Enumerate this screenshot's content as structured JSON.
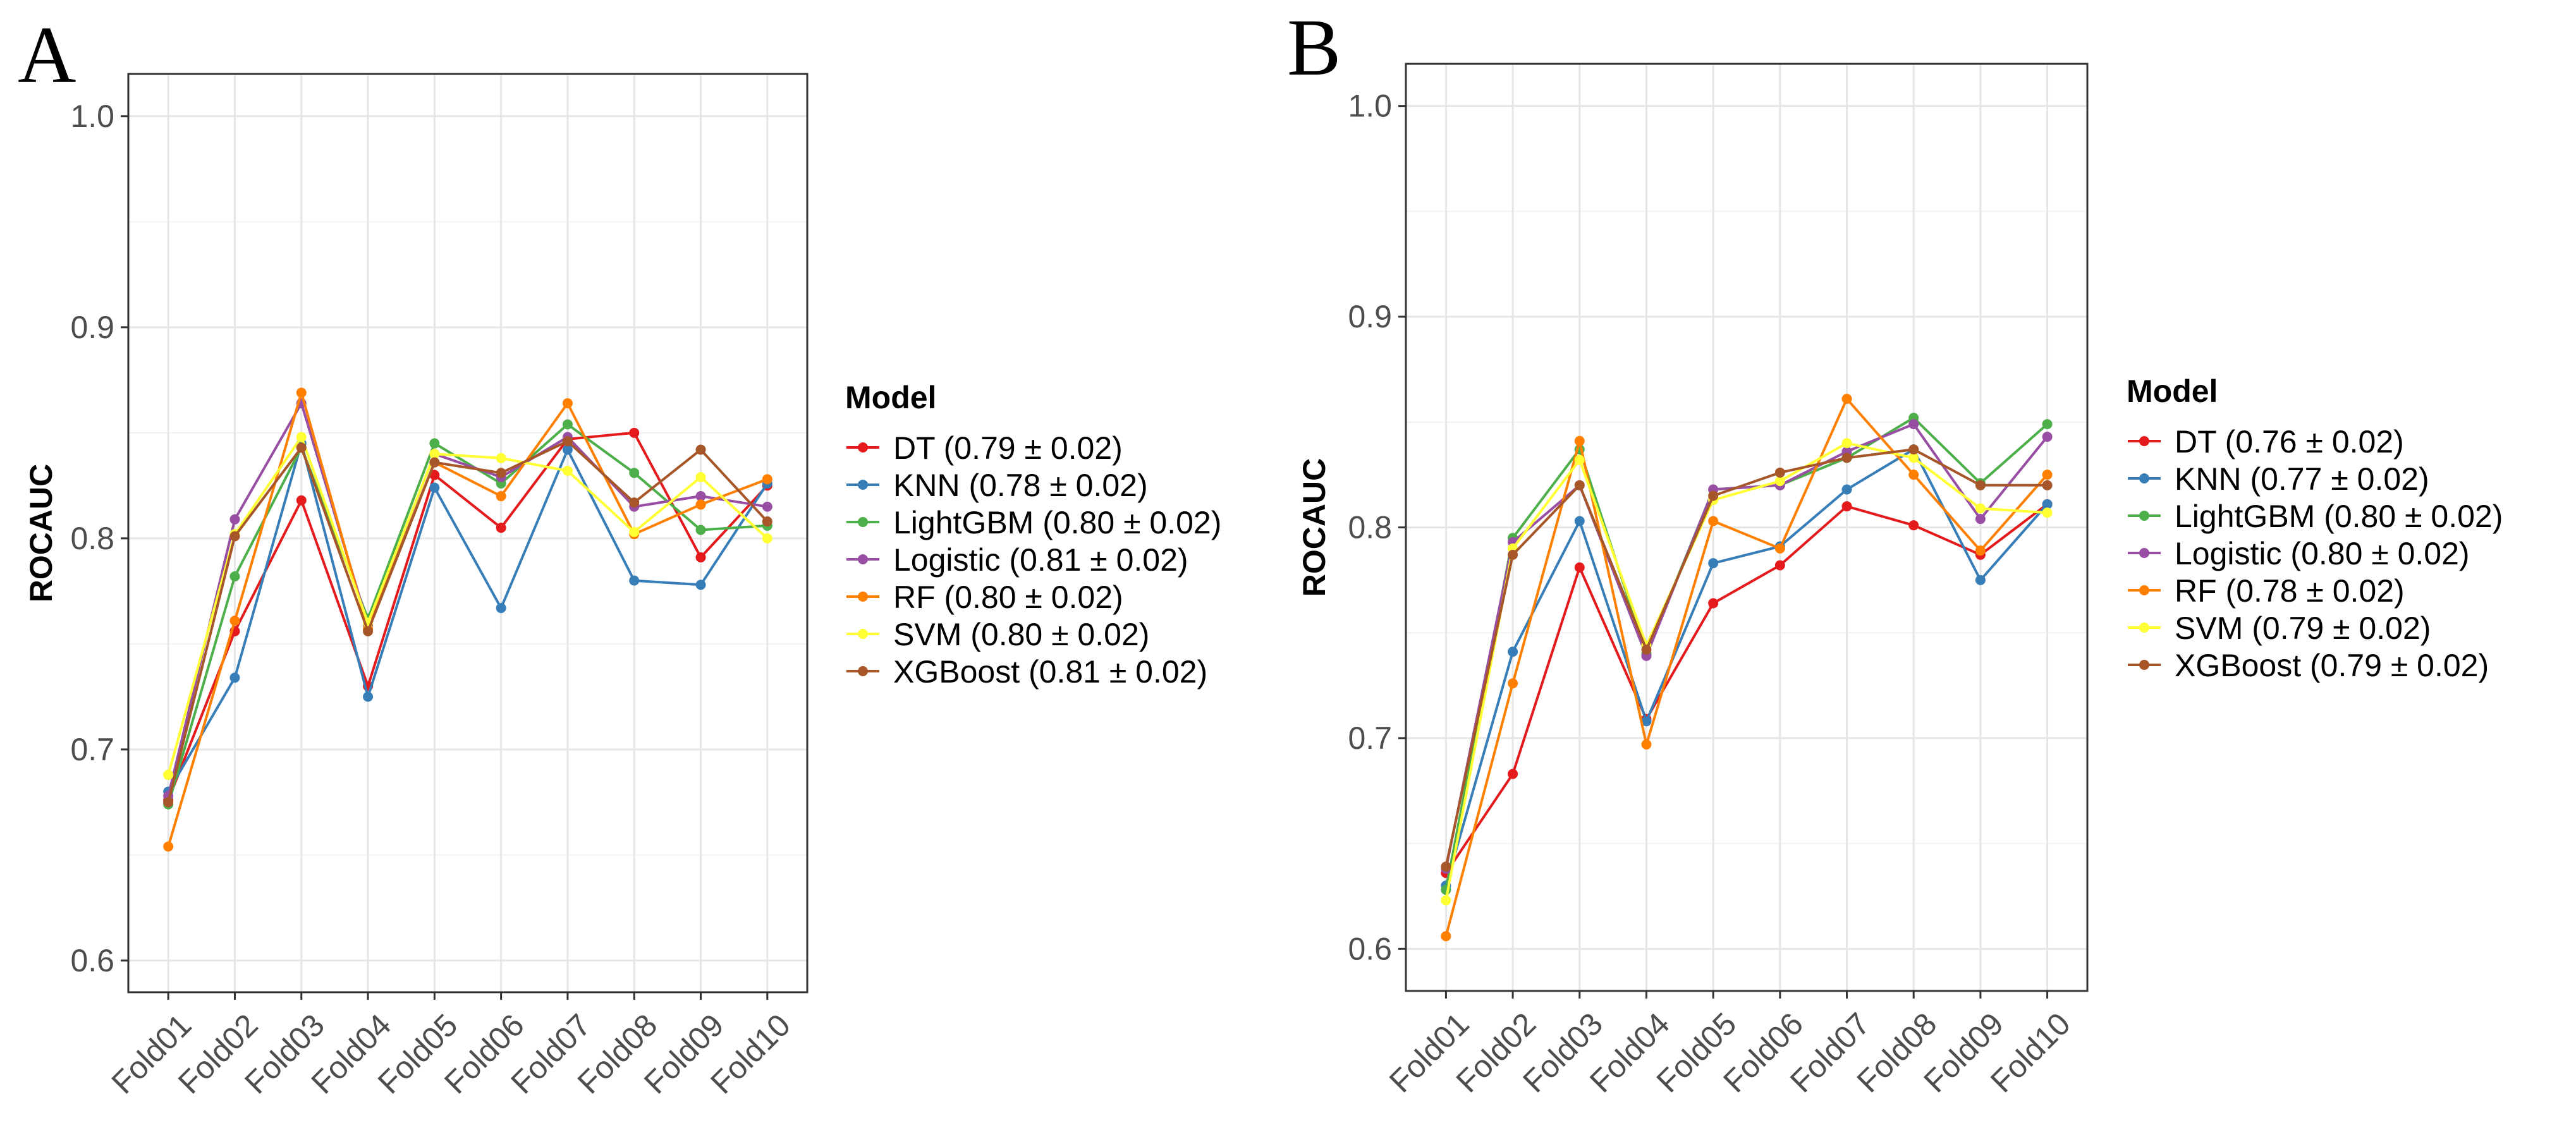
{
  "chart_data": [
    {
      "panel": "A",
      "type": "line",
      "ylabel": "ROCAUC",
      "xlabel": "",
      "ylim": [
        0.585,
        1.02
      ],
      "yticks": [
        0.6,
        0.7,
        0.8,
        0.9,
        1.0
      ],
      "ytick_labels": [
        "0.6",
        "0.7",
        "0.8",
        "0.9",
        "1.0"
      ],
      "grid": true,
      "legend_title": "Model",
      "legend_position": "right",
      "categories": [
        "Fold01",
        "Fold02",
        "Fold03",
        "Fold04",
        "Fold05",
        "Fold06",
        "Fold07",
        "Fold08",
        "Fold09",
        "Fold10"
      ],
      "series": [
        {
          "name": "DT",
          "label": "DT (0.79 ± 0.02)",
          "color": "#e41a1c",
          "values": [
            0.676,
            0.756,
            0.818,
            0.73,
            0.83,
            0.805,
            0.847,
            0.85,
            0.791,
            0.825
          ]
        },
        {
          "name": "KNN",
          "label": "KNN (0.78 ± 0.02)",
          "color": "#377eb8",
          "values": [
            0.68,
            0.734,
            0.845,
            0.725,
            0.824,
            0.767,
            0.842,
            0.78,
            0.778,
            0.826
          ]
        },
        {
          "name": "LightGBM",
          "label": "LightGBM (0.80 ± 0.02)",
          "color": "#4daf4a",
          "values": [
            0.674,
            0.782,
            0.843,
            0.762,
            0.845,
            0.826,
            0.854,
            0.831,
            0.804,
            0.806
          ]
        },
        {
          "name": "Logistic",
          "label": "Logistic (0.81 ± 0.02)",
          "color": "#984ea3",
          "values": [
            0.678,
            0.809,
            0.864,
            0.759,
            0.84,
            0.829,
            0.848,
            0.815,
            0.82,
            0.815
          ]
        },
        {
          "name": "RF",
          "label": "RF (0.80 ± 0.02)",
          "color": "#ff7f00",
          "values": [
            0.654,
            0.761,
            0.869,
            0.757,
            0.836,
            0.82,
            0.864,
            0.802,
            0.816,
            0.828
          ]
        },
        {
          "name": "SVM",
          "label": "SVM (0.80 ± 0.02)",
          "color": "#ffff33",
          "values": [
            0.688,
            0.802,
            0.848,
            0.76,
            0.84,
            0.838,
            0.832,
            0.803,
            0.829,
            0.8
          ]
        },
        {
          "name": "XGBoost",
          "label": "XGBoost (0.81 ± 0.02)",
          "color": "#a65628",
          "values": [
            0.675,
            0.801,
            0.843,
            0.756,
            0.836,
            0.831,
            0.846,
            0.817,
            0.842,
            0.808
          ]
        }
      ]
    },
    {
      "panel": "B",
      "type": "line",
      "ylabel": "ROCAUC",
      "xlabel": "",
      "ylim": [
        0.58,
        1.02
      ],
      "yticks": [
        0.6,
        0.7,
        0.8,
        0.9,
        1.0
      ],
      "ytick_labels": [
        "0.6",
        "0.7",
        "0.8",
        "0.9",
        "1.0"
      ],
      "grid": true,
      "legend_title": "Model",
      "legend_position": "right",
      "categories": [
        "Fold01",
        "Fold02",
        "Fold03",
        "Fold04",
        "Fold05",
        "Fold06",
        "Fold07",
        "Fold08",
        "Fold09",
        "Fold10"
      ],
      "series": [
        {
          "name": "DT",
          "label": "DT (0.76 ± 0.02)",
          "color": "#e41a1c",
          "values": [
            0.636,
            0.683,
            0.781,
            0.709,
            0.764,
            0.782,
            0.81,
            0.801,
            0.787,
            0.811
          ]
        },
        {
          "name": "KNN",
          "label": "KNN (0.77 ± 0.02)",
          "color": "#377eb8",
          "values": [
            0.63,
            0.741,
            0.803,
            0.708,
            0.783,
            0.791,
            0.818,
            0.837,
            0.775,
            0.811
          ]
        },
        {
          "name": "LightGBM",
          "label": "LightGBM (0.80 ± 0.02)",
          "color": "#4daf4a",
          "values": [
            0.628,
            0.795,
            0.837,
            0.74,
            0.818,
            0.82,
            0.833,
            0.852,
            0.821,
            0.849
          ]
        },
        {
          "name": "Logistic",
          "label": "Logistic (0.80 ± 0.02)",
          "color": "#984ea3",
          "values": [
            0.638,
            0.793,
            0.82,
            0.739,
            0.818,
            0.82,
            0.836,
            0.849,
            0.804,
            0.843
          ]
        },
        {
          "name": "RF",
          "label": "RF (0.78 ± 0.02)",
          "color": "#ff7f00",
          "values": [
            0.606,
            0.726,
            0.841,
            0.697,
            0.803,
            0.79,
            0.861,
            0.825,
            0.789,
            0.825
          ]
        },
        {
          "name": "SVM",
          "label": "SVM (0.79 ± 0.02)",
          "color": "#ffff33",
          "values": [
            0.623,
            0.79,
            0.832,
            0.744,
            0.813,
            0.822,
            0.84,
            0.833,
            0.809,
            0.807
          ]
        },
        {
          "name": "XGBoost",
          "label": "XGBoost (0.79 ± 0.02)",
          "color": "#a65628",
          "values": [
            0.639,
            0.787,
            0.82,
            0.742,
            0.815,
            0.826,
            0.833,
            0.837,
            0.82,
            0.82
          ]
        }
      ]
    }
  ]
}
